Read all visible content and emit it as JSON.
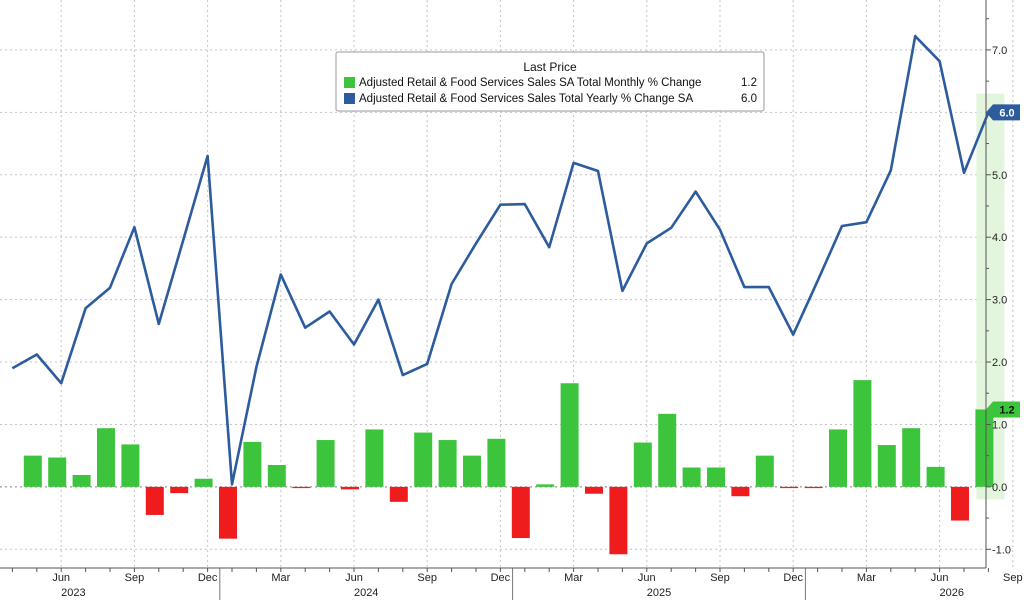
{
  "chart_data": {
    "type": "bar+line",
    "legend": {
      "title": "Last Price",
      "entries": [
        {
          "label": "Adjusted Retail & Food Services Sales SA Total Monthly % Change",
          "value": "1.2",
          "color": "#3cc43c"
        },
        {
          "label": "Adjusted Retail & Food Services Sales Total Yearly % Change SA",
          "value": "6.0",
          "color": "#2c5b9e"
        }
      ]
    },
    "ylim": [
      -1.3,
      7.8
    ],
    "y_ticks": [
      "-1.0",
      "0.0",
      "1.0",
      "2.0",
      "3.0",
      "4.0",
      "5.0",
      "6.0",
      "7.0"
    ],
    "x_ticks": [
      "Jun",
      "Sep",
      "Dec",
      "Mar",
      "Jun",
      "Sep",
      "Dec",
      "Mar",
      "Jun",
      "Sep",
      "Dec",
      "Mar",
      "Jun",
      "Sep"
    ],
    "years": [
      "2023",
      "2024",
      "2025",
      "2026"
    ],
    "series": [
      {
        "name": "Adjusted Retail & Food Services Sales SA Total Monthly % Change",
        "kind": "bar",
        "color_pos": "#3cc43c",
        "color_neg": "#ee1c1c",
        "values": [
          0.5,
          0.47,
          0.19,
          0.94,
          0.68,
          -0.45,
          -0.1,
          0.13,
          -0.83,
          0.72,
          0.35,
          -0.02,
          0.75,
          -0.04,
          0.92,
          -0.24,
          0.87,
          0.75,
          0.5,
          0.77,
          -0.82,
          0.04,
          1.66,
          -0.11,
          -1.08,
          0.71,
          1.17,
          0.31,
          0.31,
          -0.15,
          0.5,
          -0.02,
          -0.02,
          0.92,
          1.71,
          0.67,
          0.94,
          0.32,
          -0.54,
          1.24
        ]
      },
      {
        "name": "Adjusted Retail & Food Services Sales Total Yearly % Change SA",
        "kind": "line",
        "color": "#2c5b9e",
        "values": [
          1.9,
          2.12,
          1.66,
          2.86,
          3.19,
          4.16,
          2.61,
          3.95,
          5.3,
          0.04,
          1.92,
          3.4,
          2.55,
          2.81,
          2.28,
          3.0,
          1.79,
          1.97,
          3.25,
          3.9,
          4.52,
          4.53,
          3.84,
          5.19,
          5.06,
          3.14,
          3.9,
          4.15,
          4.73,
          4.12,
          3.2,
          3.2,
          2.44,
          3.3,
          4.18,
          4.24,
          5.07,
          7.22,
          6.82,
          5.03,
          6.0
        ]
      }
    ],
    "last_value_tags": [
      {
        "text": "6.0",
        "color": "#2c5b9e"
      },
      {
        "text": "1.2",
        "color": "#3cc43c"
      }
    ],
    "highlight_last_period": true,
    "grid": true
  }
}
